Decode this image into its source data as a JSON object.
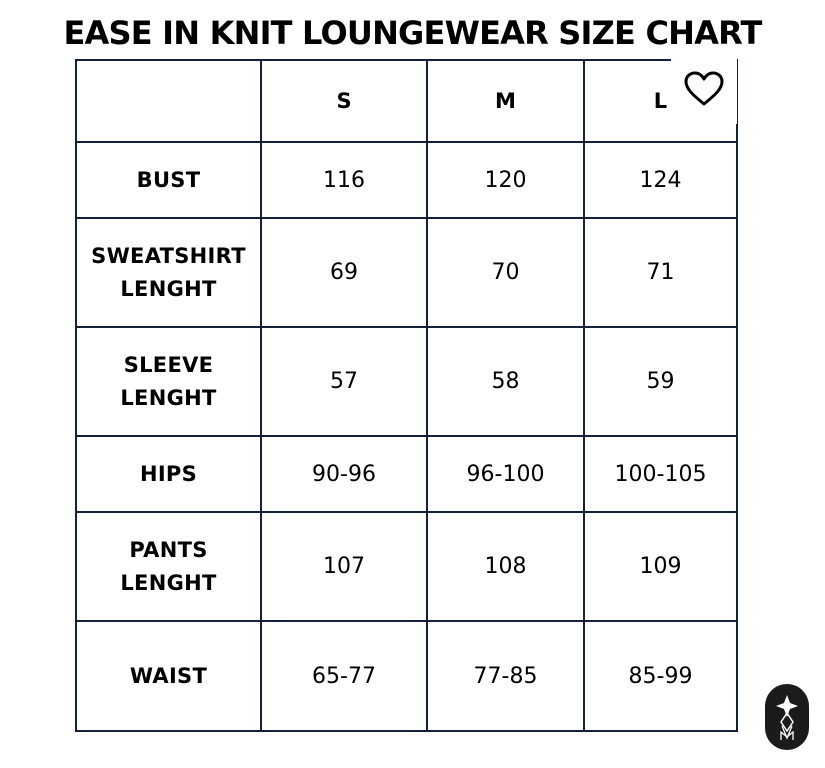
{
  "title": "EASE IN KNIT LOUNGEWEAR SIZE CHART",
  "table": {
    "columns": [
      "",
      "S",
      "M",
      "L"
    ],
    "rows": [
      {
        "label_lines": [
          "BUST"
        ],
        "values": [
          "116",
          "120",
          "124"
        ]
      },
      {
        "label_lines": [
          "SWEATSHIRT",
          "LENGHT"
        ],
        "values": [
          "69",
          "70",
          "71"
        ]
      },
      {
        "label_lines": [
          "SLEEVE",
          "LENGHT"
        ],
        "values": [
          "57",
          "58",
          "59"
        ]
      },
      {
        "label_lines": [
          "HIPS"
        ],
        "values": [
          "90-96",
          "96-100",
          "100-105"
        ]
      },
      {
        "label_lines": [
          "PANTS",
          "LENGHT"
        ],
        "values": [
          "107",
          "108",
          "109"
        ]
      },
      {
        "label_lines": [
          "WAIST"
        ],
        "values": [
          "65-77",
          "77-85",
          "85-99"
        ]
      }
    ]
  },
  "icons": {
    "favorite": "heart-outline-icon",
    "brand": "brand-logo-badge"
  },
  "colors": {
    "border": "#13203a",
    "text": "#000000",
    "badge": "#1b1b1b"
  }
}
